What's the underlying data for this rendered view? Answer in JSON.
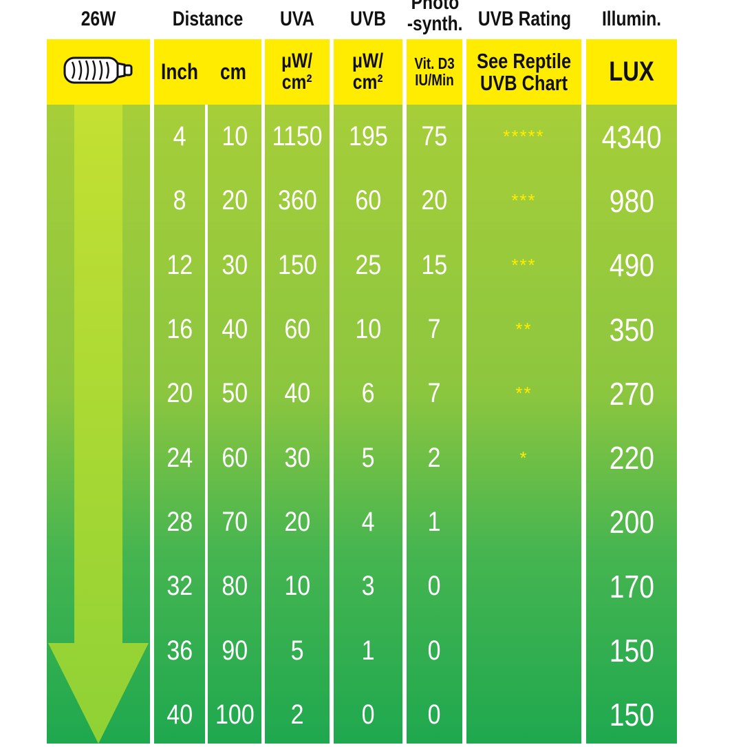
{
  "header": {
    "wattage": "26W",
    "distance": "Distance",
    "uva": "UVA",
    "uvb": "UVB",
    "photo_line1": "Photo",
    "photo_line2": "-synth.",
    "rating": "UVB Rating",
    "illum": "Illumin."
  },
  "units": {
    "inch": "Inch",
    "cm": "cm",
    "uva_line1": "μW/",
    "uva_line2": "cm²",
    "uvb_line1": "μW/",
    "uvb_line2": "cm²",
    "vit_line1": "Vit. D3",
    "vit_line2": "IU/Min",
    "rating_line1": "See Reptile",
    "rating_line2": "UVB Chart",
    "lux": "LUX"
  },
  "rows": [
    {
      "inch": "4",
      "cm": "10",
      "uva": "1150",
      "uvb": "195",
      "vitd3": "75",
      "rating": "*****",
      "lux": "4340"
    },
    {
      "inch": "8",
      "cm": "20",
      "uva": "360",
      "uvb": "60",
      "vitd3": "20",
      "rating": "***",
      "lux": "980"
    },
    {
      "inch": "12",
      "cm": "30",
      "uva": "150",
      "uvb": "25",
      "vitd3": "15",
      "rating": "***",
      "lux": "490"
    },
    {
      "inch": "16",
      "cm": "40",
      "uva": "60",
      "uvb": "10",
      "vitd3": "7",
      "rating": "**",
      "lux": "350"
    },
    {
      "inch": "20",
      "cm": "50",
      "uva": "40",
      "uvb": "6",
      "vitd3": "7",
      "rating": "**",
      "lux": "270"
    },
    {
      "inch": "24",
      "cm": "60",
      "uva": "30",
      "uvb": "5",
      "vitd3": "2",
      "rating": "*",
      "lux": "220"
    },
    {
      "inch": "28",
      "cm": "70",
      "uva": "20",
      "uvb": "4",
      "vitd3": "1",
      "rating": "",
      "lux": "200"
    },
    {
      "inch": "32",
      "cm": "80",
      "uva": "10",
      "uvb": "3",
      "vitd3": "0",
      "rating": "",
      "lux": "170"
    },
    {
      "inch": "36",
      "cm": "90",
      "uva": "5",
      "uvb": "1",
      "vitd3": "0",
      "rating": "",
      "lux": "150"
    },
    {
      "inch": "40",
      "cm": "100",
      "uva": "2",
      "uvb": "0",
      "vitd3": "0",
      "rating": "",
      "lux": "150"
    }
  ],
  "colors": {
    "yellow": "#ffec00",
    "green_top": "#a6ce39",
    "green_bottom": "#1fa84f",
    "arrow": "#b5dc2c"
  },
  "icons": {
    "lamp": "bulb-icon",
    "arrow": "down-arrow-icon"
  }
}
